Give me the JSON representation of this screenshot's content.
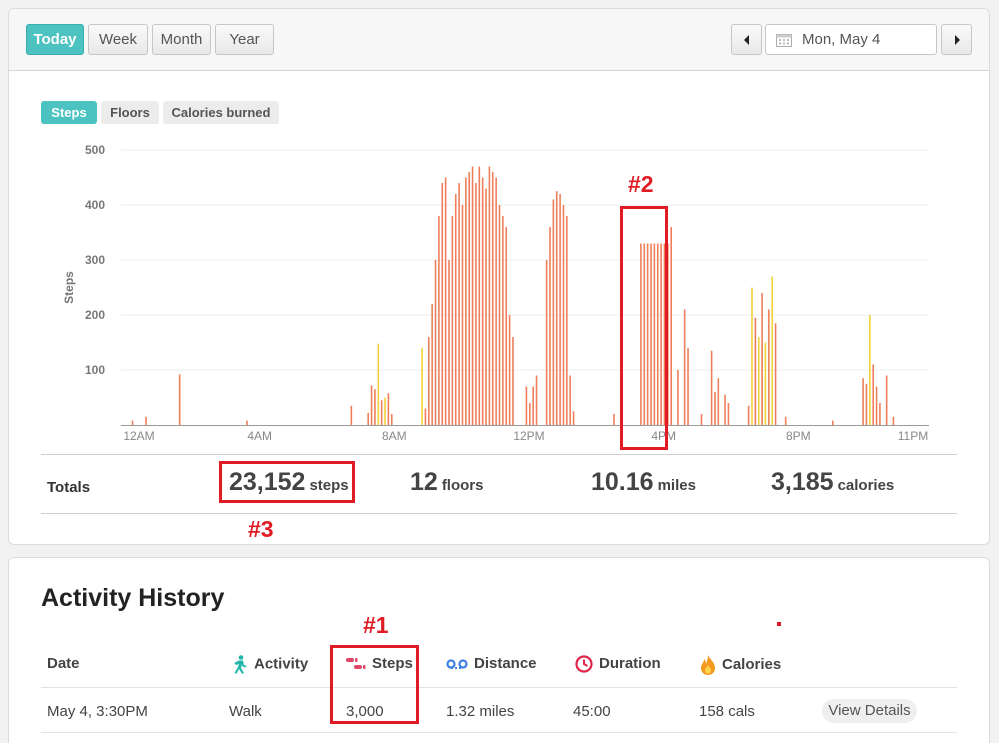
{
  "range_buttons": [
    "Today",
    "Week",
    "Month",
    "Year"
  ],
  "active_range": "Today",
  "date_label": "Mon, May 4",
  "metric_tabs": [
    "Steps",
    "Floors",
    "Calories burned"
  ],
  "active_metric": "Steps",
  "chart_data": {
    "type": "bar",
    "ylabel": "Steps",
    "xlabel": "",
    "ylim": [
      0,
      500
    ],
    "yticks": [
      100,
      200,
      300,
      400,
      500
    ],
    "xticks": [
      "12AM",
      "4AM",
      "8AM",
      "12PM",
      "4PM",
      "8PM",
      "11PM"
    ],
    "colors": {
      "active": "#ee7f5a",
      "moderate": "#f2d13a"
    },
    "series": [
      {
        "name": "",
        "x_units": "hour of day",
        "points": [
          [
            0.2,
            8
          ],
          [
            0.6,
            15
          ],
          [
            1.6,
            92
          ],
          [
            3.6,
            8
          ],
          [
            6.7,
            35
          ],
          [
            7.2,
            22
          ],
          [
            7.3,
            72
          ],
          [
            7.4,
            65
          ],
          [
            7.5,
            148
          ],
          [
            7.6,
            45
          ],
          [
            7.7,
            50
          ],
          [
            7.8,
            58
          ],
          [
            7.9,
            20
          ],
          [
            8.8,
            140
          ],
          [
            8.9,
            30
          ],
          [
            9.0,
            160
          ],
          [
            9.1,
            220
          ],
          [
            9.2,
            300
          ],
          [
            9.3,
            380
          ],
          [
            9.4,
            440
          ],
          [
            9.5,
            450
          ],
          [
            9.6,
            300
          ],
          [
            9.7,
            380
          ],
          [
            9.8,
            420
          ],
          [
            9.9,
            440
          ],
          [
            10.0,
            400
          ],
          [
            10.1,
            450
          ],
          [
            10.2,
            460
          ],
          [
            10.3,
            470
          ],
          [
            10.4,
            440
          ],
          [
            10.5,
            470
          ],
          [
            10.6,
            450
          ],
          [
            10.7,
            430
          ],
          [
            10.8,
            470
          ],
          [
            10.9,
            460
          ],
          [
            11.0,
            450
          ],
          [
            11.1,
            400
          ],
          [
            11.2,
            380
          ],
          [
            11.3,
            360
          ],
          [
            11.4,
            200
          ],
          [
            11.5,
            160
          ],
          [
            11.9,
            70
          ],
          [
            12.0,
            40
          ],
          [
            12.1,
            70
          ],
          [
            12.2,
            90
          ],
          [
            12.5,
            300
          ],
          [
            12.6,
            360
          ],
          [
            12.7,
            410
          ],
          [
            12.8,
            425
          ],
          [
            12.9,
            420
          ],
          [
            13.0,
            400
          ],
          [
            13.1,
            380
          ],
          [
            13.2,
            90
          ],
          [
            13.3,
            25
          ],
          [
            14.5,
            20
          ],
          [
            15.3,
            330
          ],
          [
            15.4,
            330
          ],
          [
            15.5,
            330
          ],
          [
            15.6,
            330
          ],
          [
            15.7,
            330
          ],
          [
            15.8,
            330
          ],
          [
            15.9,
            330
          ],
          [
            16.0,
            330
          ],
          [
            16.1,
            330
          ],
          [
            16.2,
            360
          ],
          [
            16.4,
            100
          ],
          [
            16.6,
            210
          ],
          [
            16.7,
            140
          ],
          [
            17.1,
            20
          ],
          [
            17.4,
            135
          ],
          [
            17.5,
            60
          ],
          [
            17.6,
            85
          ],
          [
            17.8,
            55
          ],
          [
            17.9,
            40
          ],
          [
            18.5,
            35
          ],
          [
            18.6,
            250
          ],
          [
            18.7,
            195
          ],
          [
            18.8,
            160
          ],
          [
            18.9,
            240
          ],
          [
            19.0,
            150
          ],
          [
            19.1,
            210
          ],
          [
            19.2,
            270
          ],
          [
            19.3,
            185
          ],
          [
            19.6,
            15
          ],
          [
            21.0,
            8
          ],
          [
            21.9,
            85
          ],
          [
            22.0,
            75
          ],
          [
            22.1,
            200
          ],
          [
            22.2,
            110
          ],
          [
            22.3,
            70
          ],
          [
            22.4,
            40
          ],
          [
            22.6,
            90
          ],
          [
            22.8,
            15
          ]
        ],
        "moderate_hours": [
          7.5,
          7.7,
          8.8,
          18.6,
          18.8,
          19.0,
          19.2,
          22.1
        ]
      }
    ]
  },
  "totals": {
    "label": "Totals",
    "steps_value": "23,152",
    "steps_unit": "steps",
    "floors_value": "12",
    "floors_unit": "floors",
    "miles_value": "10.16",
    "miles_unit": "miles",
    "calories_value": "3,185",
    "calories_unit": "calories"
  },
  "annotations": {
    "label1": "#1",
    "label2": "#2",
    "label3": "#3"
  },
  "history": {
    "title": "Activity History",
    "headers": {
      "date": "Date",
      "activity": "Activity",
      "steps": "Steps",
      "distance": "Distance",
      "duration": "Duration",
      "calories": "Calories"
    },
    "row": {
      "date": "May 4, 3:30PM",
      "activity": "Walk",
      "steps": "3,000",
      "distance": "1.32 miles",
      "duration": "45:00",
      "calories": "158 cals",
      "action": "View Details"
    }
  }
}
